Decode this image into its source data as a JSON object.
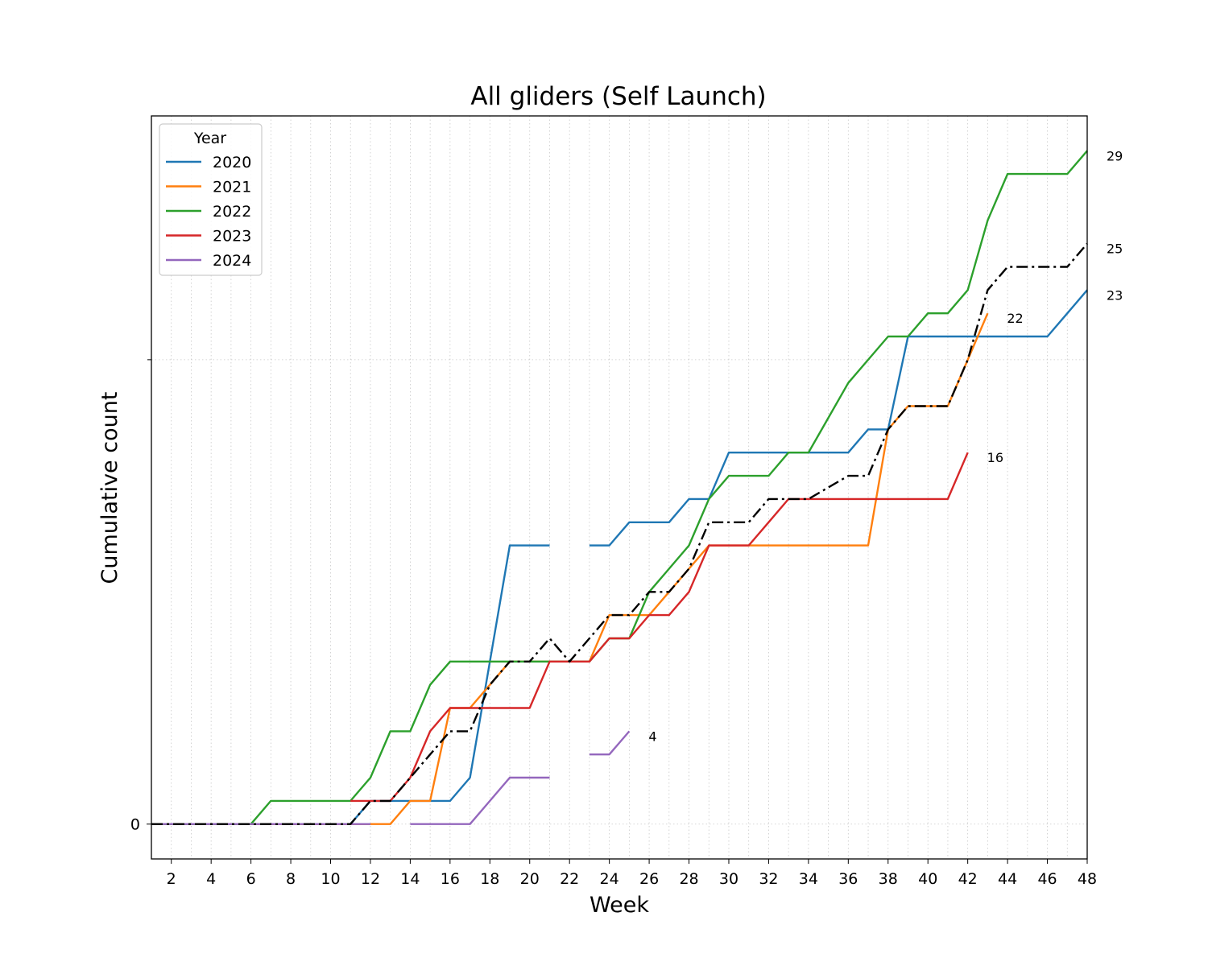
{
  "chart_data": {
    "type": "line",
    "title": "All gliders (Self Launch)",
    "xlabel": "Week",
    "ylabel": "Cumulative count",
    "xlim": [
      1,
      48
    ],
    "ylim": [
      -1.5,
      30.5
    ],
    "x_ticks": [
      2,
      4,
      6,
      8,
      10,
      12,
      14,
      16,
      18,
      20,
      22,
      24,
      26,
      28,
      30,
      32,
      34,
      36,
      38,
      40,
      42,
      44,
      46,
      48
    ],
    "y_ticks": [
      0
    ],
    "y_tick_labels": [
      "0"
    ],
    "grid": "dotted, both axes",
    "legend": {
      "title": "Year",
      "position": "top-left",
      "entries": [
        "2020",
        "2021",
        "2022",
        "2023",
        "2024"
      ]
    },
    "series": [
      {
        "name": "2020",
        "color": "#1f77b4",
        "style": "solid",
        "points": [
          [
            1,
            0
          ],
          [
            2,
            0
          ],
          [
            3,
            0
          ],
          [
            4,
            0
          ],
          [
            5,
            0
          ],
          [
            6,
            0
          ],
          [
            7,
            0
          ],
          [
            8,
            0
          ],
          [
            9,
            0
          ],
          [
            10,
            0
          ],
          [
            11,
            0
          ],
          [
            12,
            1
          ],
          [
            13,
            1
          ],
          [
            14,
            1
          ],
          [
            15,
            1
          ],
          [
            16,
            1
          ],
          [
            17,
            2
          ],
          [
            18,
            7
          ],
          [
            19,
            12
          ],
          [
            20,
            12
          ],
          [
            21,
            12
          ],
          [
            22,
            null
          ],
          [
            23,
            12
          ],
          [
            24,
            12
          ],
          [
            25,
            13
          ],
          [
            26,
            13
          ],
          [
            27,
            13
          ],
          [
            28,
            14
          ],
          [
            29,
            14
          ],
          [
            30,
            16
          ],
          [
            31,
            16
          ],
          [
            32,
            16
          ],
          [
            33,
            16
          ],
          [
            34,
            16
          ],
          [
            35,
            16
          ],
          [
            36,
            16
          ],
          [
            37,
            17
          ],
          [
            38,
            17
          ],
          [
            39,
            21
          ],
          [
            40,
            21
          ],
          [
            41,
            21
          ],
          [
            42,
            21
          ],
          [
            43,
            21
          ],
          [
            44,
            21
          ],
          [
            45,
            21
          ],
          [
            46,
            21
          ],
          [
            47,
            22
          ],
          [
            48,
            23
          ]
        ],
        "end_label": "23"
      },
      {
        "name": "2021",
        "color": "#ff7f0e",
        "style": "solid",
        "points": [
          [
            1,
            0
          ],
          [
            2,
            0
          ],
          [
            3,
            0
          ],
          [
            4,
            0
          ],
          [
            5,
            0
          ],
          [
            6,
            0
          ],
          [
            7,
            0
          ],
          [
            8,
            0
          ],
          [
            9,
            0
          ],
          [
            10,
            0
          ],
          [
            11,
            0
          ],
          [
            12,
            0
          ],
          [
            13,
            0
          ],
          [
            14,
            1
          ],
          [
            15,
            1
          ],
          [
            16,
            5
          ],
          [
            17,
            5
          ],
          [
            18,
            6
          ],
          [
            19,
            7
          ],
          [
            20,
            7
          ],
          [
            21,
            7
          ],
          [
            22,
            7
          ],
          [
            23,
            7
          ],
          [
            24,
            9
          ],
          [
            25,
            9
          ],
          [
            26,
            9
          ],
          [
            27,
            10
          ],
          [
            28,
            11
          ],
          [
            29,
            12
          ],
          [
            30,
            12
          ],
          [
            31,
            12
          ],
          [
            32,
            12
          ],
          [
            33,
            12
          ],
          [
            34,
            12
          ],
          [
            35,
            12
          ],
          [
            36,
            12
          ],
          [
            37,
            12
          ],
          [
            38,
            17
          ],
          [
            39,
            18
          ],
          [
            40,
            18
          ],
          [
            41,
            18
          ],
          [
            42,
            20
          ],
          [
            43,
            22
          ]
        ],
        "end_label": "22"
      },
      {
        "name": "2022",
        "color": "#2ca02c",
        "style": "solid",
        "points": [
          [
            1,
            0
          ],
          [
            2,
            0
          ],
          [
            3,
            0
          ],
          [
            4,
            0
          ],
          [
            5,
            0
          ],
          [
            6,
            0
          ],
          [
            7,
            1
          ],
          [
            8,
            1
          ],
          [
            9,
            1
          ],
          [
            10,
            1
          ],
          [
            11,
            1
          ],
          [
            12,
            2
          ],
          [
            13,
            4
          ],
          [
            14,
            4
          ],
          [
            15,
            6
          ],
          [
            16,
            7
          ],
          [
            17,
            7
          ],
          [
            18,
            7
          ],
          [
            19,
            7
          ],
          [
            20,
            7
          ],
          [
            21,
            7
          ],
          [
            22,
            7
          ],
          [
            23,
            7
          ],
          [
            24,
            8
          ],
          [
            25,
            8
          ],
          [
            26,
            10
          ],
          [
            27,
            11
          ],
          [
            28,
            12
          ],
          [
            29,
            14
          ],
          [
            30,
            15
          ],
          [
            31,
            15
          ],
          [
            32,
            15
          ],
          [
            33,
            16
          ],
          [
            34,
            16
          ],
          [
            35,
            17.5
          ],
          [
            36,
            19
          ],
          [
            37,
            20
          ],
          [
            38,
            21
          ],
          [
            39,
            21
          ],
          [
            40,
            22
          ],
          [
            41,
            22
          ],
          [
            42,
            23
          ],
          [
            43,
            26
          ],
          [
            44,
            28
          ],
          [
            45,
            28
          ],
          [
            46,
            28
          ],
          [
            47,
            28
          ],
          [
            48,
            29
          ]
        ],
        "end_label": "29"
      },
      {
        "name": "2023",
        "color": "#d62728",
        "style": "solid",
        "points": [
          [
            11,
            1
          ],
          [
            12,
            1
          ],
          [
            13,
            1
          ],
          [
            14,
            2
          ],
          [
            15,
            4
          ],
          [
            16,
            5
          ],
          [
            17,
            5
          ],
          [
            18,
            5
          ],
          [
            19,
            5
          ],
          [
            20,
            5
          ],
          [
            21,
            7
          ],
          [
            22,
            7
          ],
          [
            23,
            7
          ],
          [
            24,
            8
          ],
          [
            25,
            8
          ],
          [
            26,
            9
          ],
          [
            27,
            9
          ],
          [
            28,
            10
          ],
          [
            29,
            12
          ],
          [
            30,
            12
          ],
          [
            31,
            12
          ],
          [
            32,
            13
          ],
          [
            33,
            14
          ],
          [
            34,
            14
          ],
          [
            35,
            14
          ],
          [
            36,
            14
          ],
          [
            37,
            14
          ],
          [
            38,
            14
          ],
          [
            39,
            14
          ],
          [
            40,
            14
          ],
          [
            41,
            14
          ],
          [
            42,
            16
          ]
        ],
        "end_label": "16"
      },
      {
        "name": "2024",
        "color": "#9467bd",
        "style": "solid",
        "points": [
          [
            1,
            0
          ],
          [
            2,
            0
          ],
          [
            3,
            0
          ],
          [
            4,
            0
          ],
          [
            5,
            0
          ],
          [
            6,
            0
          ],
          [
            7,
            0
          ],
          [
            8,
            0
          ],
          [
            9,
            0
          ],
          [
            10,
            0
          ],
          [
            11,
            0
          ],
          [
            12,
            0
          ],
          [
            13,
            null
          ],
          [
            14,
            0
          ],
          [
            15,
            0
          ],
          [
            16,
            0
          ],
          [
            17,
            0
          ],
          [
            18,
            1
          ],
          [
            19,
            2
          ],
          [
            20,
            2
          ],
          [
            21,
            2
          ],
          [
            22,
            null
          ],
          [
            23,
            3
          ],
          [
            24,
            3
          ],
          [
            25,
            4
          ]
        ],
        "end_label": "4"
      },
      {
        "name": "",
        "color": "#000000",
        "style": "dashdot",
        "points": [
          [
            1,
            0
          ],
          [
            2,
            0
          ],
          [
            3,
            0
          ],
          [
            4,
            0
          ],
          [
            5,
            0
          ],
          [
            6,
            0
          ],
          [
            7,
            0
          ],
          [
            8,
            0
          ],
          [
            9,
            0
          ],
          [
            10,
            0
          ],
          [
            11,
            0
          ],
          [
            12,
            1
          ],
          [
            13,
            1
          ],
          [
            14,
            2
          ],
          [
            15,
            3
          ],
          [
            16,
            4
          ],
          [
            17,
            4
          ],
          [
            18,
            6
          ],
          [
            19,
            7
          ],
          [
            20,
            7
          ],
          [
            21,
            8
          ],
          [
            22,
            7
          ],
          [
            23,
            8
          ],
          [
            24,
            9
          ],
          [
            25,
            9
          ],
          [
            26,
            10
          ],
          [
            27,
            10
          ],
          [
            28,
            11
          ],
          [
            29,
            13
          ],
          [
            30,
            13
          ],
          [
            31,
            13
          ],
          [
            32,
            14
          ],
          [
            33,
            14
          ],
          [
            34,
            14
          ],
          [
            35,
            14.5
          ],
          [
            36,
            15
          ],
          [
            37,
            15
          ],
          [
            38,
            17
          ],
          [
            39,
            18
          ],
          [
            40,
            18
          ],
          [
            41,
            18
          ],
          [
            42,
            20
          ],
          [
            43,
            23
          ],
          [
            44,
            24
          ],
          [
            45,
            24
          ],
          [
            46,
            24
          ],
          [
            47,
            24
          ],
          [
            48,
            25
          ]
        ],
        "end_label": "25"
      }
    ]
  }
}
